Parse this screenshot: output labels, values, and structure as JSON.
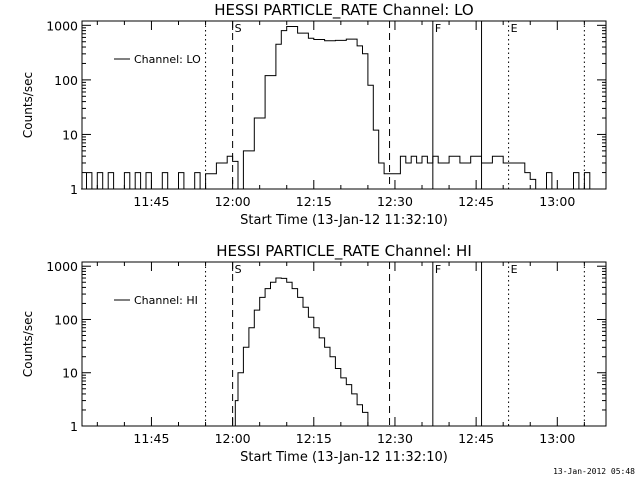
{
  "timestamp": "13-Jan-2012 05:48",
  "chart_data": [
    {
      "type": "line",
      "title": "HESSI PARTICLE_RATE Channel: LO",
      "xlabel": "Start Time (13-Jan-12 11:32:10)",
      "ylabel": "Counts/sec",
      "y_scale": "log",
      "ylim": [
        1,
        1200
      ],
      "xlim": [
        "11:32:10",
        "13:09:00"
      ],
      "x_ticks": [
        "11:45",
        "12:00",
        "12:15",
        "12:30",
        "12:45",
        "13:00"
      ],
      "y_ticks": [
        "1",
        "10",
        "100",
        "1000"
      ],
      "legend": {
        "label": "Channel: LO",
        "position": "top-left"
      },
      "markers": [
        {
          "label": "S",
          "time": "12:00",
          "style": "dashed"
        },
        {
          "label": "",
          "time": "12:29",
          "style": "dashed"
        },
        {
          "label": "F",
          "time": "12:37",
          "style": "solid"
        },
        {
          "label": "",
          "time": "12:46",
          "style": "solid"
        },
        {
          "label": "E",
          "time": "12:51",
          "style": "dotted"
        },
        {
          "label": "",
          "time": "11:55",
          "style": "dotted"
        },
        {
          "label": "",
          "time": "13:05",
          "style": "dotted"
        }
      ],
      "series": [
        {
          "name": "Channel: LO",
          "x": [
            "11:32",
            "11:33",
            "11:34",
            "11:35",
            "11:36",
            "11:37",
            "11:38",
            "11:39",
            "11:40",
            "11:41",
            "11:42",
            "11:43",
            "11:44",
            "11:45",
            "11:46",
            "11:47",
            "11:48",
            "11:49",
            "11:50",
            "11:51",
            "11:52",
            "11:53",
            "11:54",
            "11:55",
            "11:56",
            "11:57",
            "11:58",
            "11:59",
            "12:00",
            "12:01",
            "12:02",
            "12:04",
            "12:06",
            "12:08",
            "12:09",
            "12:10",
            "12:12",
            "12:14",
            "12:15",
            "12:17",
            "12:19",
            "12:21",
            "12:23",
            "12:24",
            "12:25",
            "12:26",
            "12:27",
            "12:28",
            "12:29",
            "12:30",
            "12:31",
            "12:32",
            "12:33",
            "12:34",
            "12:35",
            "12:36",
            "12:37",
            "12:38",
            "12:40",
            "12:42",
            "12:44",
            "12:46",
            "12:48",
            "12:50",
            "12:51",
            "12:52",
            "12:53",
            "12:54",
            "12:55",
            "12:56",
            "12:57",
            "12:58",
            "12:59",
            "13:00",
            "13:01",
            "13:02",
            "13:03",
            "13:04",
            "13:05",
            "13:06",
            "13:07",
            "13:08"
          ],
          "y": [
            1,
            2,
            1,
            2,
            1,
            2,
            1,
            1,
            2,
            1,
            2,
            1,
            2,
            1,
            1,
            2,
            1,
            1,
            2,
            1,
            1,
            2,
            1,
            1.9,
            1.9,
            3,
            3,
            4,
            3.2,
            1,
            5,
            20,
            120,
            450,
            800,
            950,
            720,
            580,
            550,
            520,
            530,
            560,
            420,
            300,
            80,
            12,
            3,
            1.9,
            1.9,
            1.9,
            4,
            3,
            4,
            3,
            4,
            3,
            4,
            3,
            4,
            3,
            4,
            3,
            4,
            3,
            3,
            3,
            3,
            2,
            1.5,
            1,
            1,
            2,
            1,
            1,
            1,
            1,
            2,
            1,
            2,
            1,
            1,
            1
          ]
        }
      ]
    },
    {
      "type": "line",
      "title": "HESSI PARTICLE_RATE Channel: HI",
      "xlabel": "Start Time (13-Jan-12 11:32:10)",
      "ylabel": "Counts/sec",
      "y_scale": "log",
      "ylim": [
        1,
        1200
      ],
      "xlim": [
        "11:32:10",
        "13:09:00"
      ],
      "x_ticks": [
        "11:45",
        "12:00",
        "12:15",
        "12:30",
        "12:45",
        "13:00"
      ],
      "y_ticks": [
        "1",
        "10",
        "100",
        "1000"
      ],
      "legend": {
        "label": "Channel: HI",
        "position": "top-left"
      },
      "markers": [
        {
          "label": "S",
          "time": "12:00",
          "style": "dashed"
        },
        {
          "label": "",
          "time": "12:29",
          "style": "dashed"
        },
        {
          "label": "F",
          "time": "12:37",
          "style": "solid"
        },
        {
          "label": "",
          "time": "12:46",
          "style": "solid"
        },
        {
          "label": "E",
          "time": "12:51",
          "style": "dotted"
        },
        {
          "label": "",
          "time": "11:55",
          "style": "dotted"
        },
        {
          "label": "",
          "time": "13:05",
          "style": "dotted"
        }
      ],
      "series": [
        {
          "name": "Channel: HI",
          "x": [
            "12:00",
            "12:00.5",
            "12:01",
            "12:02",
            "12:03",
            "12:04",
            "12:05",
            "12:06",
            "12:07",
            "12:08",
            "12:09",
            "12:10",
            "12:11",
            "12:12",
            "12:13",
            "12:14",
            "12:15",
            "12:16",
            "12:17",
            "12:18",
            "12:19",
            "12:20",
            "12:21",
            "12:22",
            "12:23",
            "12:24",
            "12:25"
          ],
          "y": [
            1,
            3,
            10,
            30,
            70,
            150,
            260,
            380,
            500,
            600,
            590,
            500,
            380,
            260,
            170,
            110,
            70,
            45,
            30,
            20,
            12,
            8,
            6,
            4,
            2.5,
            1.8,
            1
          ]
        }
      ]
    }
  ]
}
